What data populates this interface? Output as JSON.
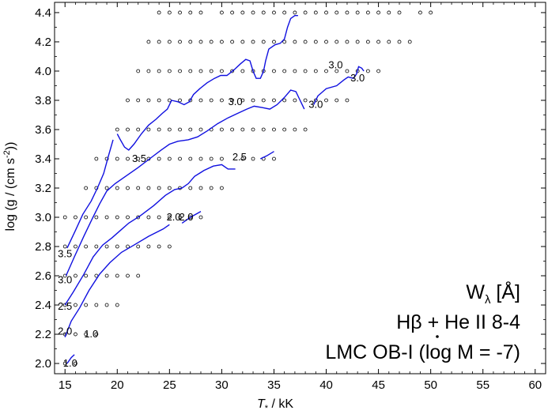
{
  "chart_data": {
    "type": "scatter",
    "xlabel": "T",
    "xlabel_sub": "*",
    "xlabel_unit": " / kK",
    "ylabel": "log (g / (cm s",
    "ylabel_sup": "-2",
    "ylabel_end": "))",
    "xlim": [
      14,
      61
    ],
    "ylim": [
      1.93,
      4.47
    ],
    "xticks": [
      15,
      20,
      25,
      30,
      35,
      40,
      45,
      50,
      55,
      60
    ],
    "yticks": [
      2.0,
      2.2,
      2.4,
      2.6,
      2.8,
      3.0,
      3.2,
      3.4,
      3.6,
      3.8,
      4.0,
      4.2,
      4.4
    ],
    "xtick_labels": [
      "15",
      "20",
      "25",
      "30",
      "35",
      "40",
      "45",
      "50",
      "55",
      "60"
    ],
    "ytick_labels": [
      "2.0",
      "2.2",
      "2.4",
      "2.6",
      "2.8",
      "3.0",
      "3.2",
      "3.4",
      "3.6",
      "3.8",
      "4.0",
      "4.2",
      "4.4"
    ],
    "grid_rows": [
      {
        "y": 2.0,
        "x": [
          15,
          16
        ]
      },
      {
        "y": 2.2,
        "x": [
          15,
          16,
          17,
          18
        ]
      },
      {
        "y": 2.4,
        "x": [
          15,
          16,
          17,
          18,
          19,
          20
        ]
      },
      {
        "y": 2.6,
        "x": [
          15,
          16,
          17,
          18,
          19,
          20,
          21,
          22
        ]
      },
      {
        "y": 2.8,
        "x": [
          15,
          16,
          17,
          18,
          19,
          20,
          21,
          22,
          23,
          24,
          25
        ]
      },
      {
        "y": 3.0,
        "x": [
          15,
          16,
          17,
          18,
          19,
          20,
          21,
          22,
          23,
          24,
          25,
          26,
          27,
          28
        ]
      },
      {
        "y": 3.2,
        "x": [
          17,
          18,
          19,
          20,
          21,
          22,
          23,
          24,
          25,
          26,
          27,
          28,
          29,
          30
        ]
      },
      {
        "y": 3.4,
        "x": [
          18,
          19,
          20,
          21,
          22,
          23,
          24,
          25,
          26,
          27,
          28,
          29,
          30,
          32,
          33,
          34,
          35
        ]
      },
      {
        "y": 3.6,
        "x": [
          20,
          21,
          22,
          23,
          24,
          25,
          26,
          27,
          28,
          29,
          30,
          31,
          32,
          33,
          34,
          35,
          36,
          37,
          38
        ]
      },
      {
        "y": 3.8,
        "x": [
          21,
          22,
          23,
          24,
          25,
          26,
          27,
          28,
          29,
          30,
          31,
          32,
          33,
          34,
          35,
          36,
          37,
          38,
          39,
          40,
          41,
          42
        ]
      },
      {
        "y": 4.0,
        "x": [
          22,
          23,
          24,
          25,
          26,
          27,
          28,
          29,
          30,
          31,
          32,
          33,
          34,
          35,
          36,
          37,
          38,
          39,
          40,
          41,
          42,
          43,
          44,
          45
        ]
      },
      {
        "y": 4.2,
        "x": [
          23,
          24,
          25,
          26,
          27,
          28,
          29,
          30,
          31,
          32,
          33,
          34,
          35,
          36,
          37,
          38,
          39,
          40,
          41,
          42,
          43,
          44,
          45,
          46,
          47,
          48
        ]
      },
      {
        "y": 4.4,
        "x": [
          24,
          25,
          26,
          27,
          28,
          30,
          31,
          32,
          33,
          34,
          35,
          36,
          37,
          38,
          39,
          40,
          41,
          42,
          43,
          44,
          45,
          46,
          47,
          49,
          50
        ]
      }
    ],
    "contours": [
      {
        "level": "1.0",
        "points": [
          [
            15.2,
            2.0
          ],
          [
            15.6,
            2.04
          ],
          [
            15.9,
            2.06
          ]
        ]
      },
      {
        "level": "2.0",
        "points": [
          [
            15.0,
            2.18
          ],
          [
            15.6,
            2.29
          ],
          [
            16.4,
            2.38
          ],
          [
            17.3,
            2.5
          ],
          [
            18.3,
            2.61
          ],
          [
            19.3,
            2.69
          ],
          [
            20.4,
            2.76
          ],
          [
            21.6,
            2.81
          ],
          [
            23.0,
            2.87
          ],
          [
            24.4,
            2.92
          ],
          [
            25.0,
            2.95
          ]
        ]
      },
      {
        "level": "2.0",
        "points": [
          [
            26.2,
            2.96
          ],
          [
            27.0,
            3.0
          ],
          [
            28.0,
            3.04
          ]
        ]
      },
      {
        "level": "2.5",
        "points": [
          [
            15.0,
            2.4
          ],
          [
            15.8,
            2.49
          ],
          [
            16.8,
            2.61
          ],
          [
            17.7,
            2.73
          ],
          [
            18.6,
            2.81
          ],
          [
            19.5,
            2.86
          ],
          [
            20.3,
            2.91
          ],
          [
            21.1,
            2.96
          ],
          [
            22.2,
            3.01
          ],
          [
            23.5,
            3.08
          ],
          [
            24.6,
            3.15
          ],
          [
            25.5,
            3.19
          ],
          [
            26.2,
            3.2
          ],
          [
            26.8,
            3.23
          ],
          [
            27.4,
            3.28
          ],
          [
            28.3,
            3.32
          ],
          [
            29.2,
            3.35
          ],
          [
            30.0,
            3.36
          ],
          [
            30.6,
            3.33
          ],
          [
            31.3,
            3.33
          ]
        ]
      },
      {
        "level": "2.5",
        "points": [
          [
            33.7,
            3.4
          ],
          [
            34.3,
            3.42
          ],
          [
            35.0,
            3.45
          ]
        ]
      },
      {
        "level": "3.0",
        "points": [
          [
            15.1,
            2.6
          ],
          [
            15.9,
            2.73
          ],
          [
            16.8,
            2.87
          ],
          [
            17.6,
            2.99
          ],
          [
            18.3,
            3.09
          ],
          [
            19.0,
            3.18
          ],
          [
            19.8,
            3.23
          ],
          [
            20.8,
            3.28
          ],
          [
            22.0,
            3.34
          ],
          [
            23.1,
            3.4
          ],
          [
            24.2,
            3.46
          ],
          [
            25.0,
            3.5
          ],
          [
            25.8,
            3.52
          ],
          [
            26.8,
            3.53
          ],
          [
            27.7,
            3.55
          ],
          [
            28.6,
            3.59
          ],
          [
            29.6,
            3.64
          ],
          [
            30.6,
            3.68
          ],
          [
            31.5,
            3.71
          ],
          [
            32.4,
            3.74
          ],
          [
            33.1,
            3.76
          ],
          [
            33.9,
            3.75
          ],
          [
            34.6,
            3.74
          ],
          [
            35.3,
            3.77
          ],
          [
            36.0,
            3.82
          ],
          [
            36.6,
            3.87
          ],
          [
            37.1,
            3.86
          ],
          [
            37.5,
            3.8
          ],
          [
            37.9,
            3.74
          ]
        ]
      },
      {
        "level": "3.0",
        "points": [
          [
            38.8,
            3.77
          ],
          [
            39.2,
            3.83
          ],
          [
            40.0,
            3.88
          ],
          [
            41.0,
            3.9
          ],
          [
            41.7,
            3.94
          ],
          [
            42.1,
            3.96
          ],
          [
            42.6,
            3.95
          ],
          [
            42.9,
            3.98
          ],
          [
            43.1,
            4.03
          ],
          [
            43.4,
            4.02
          ],
          [
            43.6,
            4.0
          ]
        ]
      },
      {
        "level": "3.5",
        "points": [
          [
            15.2,
            2.79
          ],
          [
            16.0,
            2.91
          ],
          [
            16.7,
            3.02
          ],
          [
            17.5,
            3.11
          ],
          [
            18.1,
            3.2
          ],
          [
            18.7,
            3.3
          ],
          [
            19.2,
            3.43
          ],
          [
            19.6,
            3.53
          ]
        ]
      },
      {
        "level": "3.5",
        "points": [
          [
            20.0,
            3.57
          ],
          [
            20.3,
            3.53
          ],
          [
            20.7,
            3.48
          ],
          [
            21.1,
            3.46
          ],
          [
            21.6,
            3.5
          ],
          [
            22.3,
            3.57
          ],
          [
            23.0,
            3.63
          ],
          [
            23.7,
            3.67
          ],
          [
            24.3,
            3.71
          ],
          [
            24.8,
            3.74
          ],
          [
            25.2,
            3.8
          ],
          [
            25.8,
            3.79
          ],
          [
            26.4,
            3.77
          ],
          [
            26.9,
            3.79
          ],
          [
            27.3,
            3.84
          ],
          [
            27.9,
            3.88
          ],
          [
            28.6,
            3.92
          ],
          [
            29.3,
            3.95
          ],
          [
            29.9,
            3.97
          ],
          [
            30.5,
            3.97
          ],
          [
            31.2,
            4.01
          ],
          [
            31.8,
            4.05
          ],
          [
            32.3,
            4.08
          ],
          [
            32.7,
            4.07
          ],
          [
            33.0,
            4.0
          ],
          [
            33.3,
            3.95
          ],
          [
            33.7,
            3.95
          ],
          [
            34.0,
            4.0
          ],
          [
            34.2,
            4.07
          ],
          [
            34.5,
            4.15
          ],
          [
            35.1,
            4.18
          ],
          [
            35.6,
            4.19
          ],
          [
            36.0,
            4.22
          ],
          [
            36.3,
            4.3
          ],
          [
            36.6,
            4.36
          ],
          [
            37.0,
            4.38
          ],
          [
            37.3,
            4.38
          ]
        ]
      }
    ],
    "contour_labels": [
      {
        "text": "1.0",
        "x": 15.5,
        "y": 2.0
      },
      {
        "text": "1.0",
        "x": 17.5,
        "y": 2.2
      },
      {
        "text": "2.0",
        "x": 15.0,
        "y": 2.22
      },
      {
        "text": "2.5",
        "x": 15.0,
        "y": 2.39
      },
      {
        "text": "3.0",
        "x": 15.0,
        "y": 2.57
      },
      {
        "text": "3.5",
        "x": 15.0,
        "y": 2.75
      },
      {
        "text": "3.5",
        "x": 22.1,
        "y": 3.4
      },
      {
        "text": "2.0",
        "x": 25.4,
        "y": 3.0
      },
      {
        "text": "2.0",
        "x": 26.6,
        "y": 3.0
      },
      {
        "text": "2.5",
        "x": 31.7,
        "y": 3.41
      },
      {
        "text": "3.0",
        "x": 31.3,
        "y": 3.79
      },
      {
        "text": "3.0",
        "x": 39.0,
        "y": 3.77
      },
      {
        "text": "3.0",
        "x": 40.9,
        "y": 4.04
      },
      {
        "text": "3.0",
        "x": 43.0,
        "y": 3.95
      }
    ],
    "annotations": {
      "line1_main": "W",
      "line1_sub": "λ",
      "line1_rest": " [Å]",
      "line2": "Hβ + He II 8-4",
      "line3_a": "LMC OB-I (log ",
      "line3_b": "M",
      "line3_c": " = -7)"
    }
  }
}
